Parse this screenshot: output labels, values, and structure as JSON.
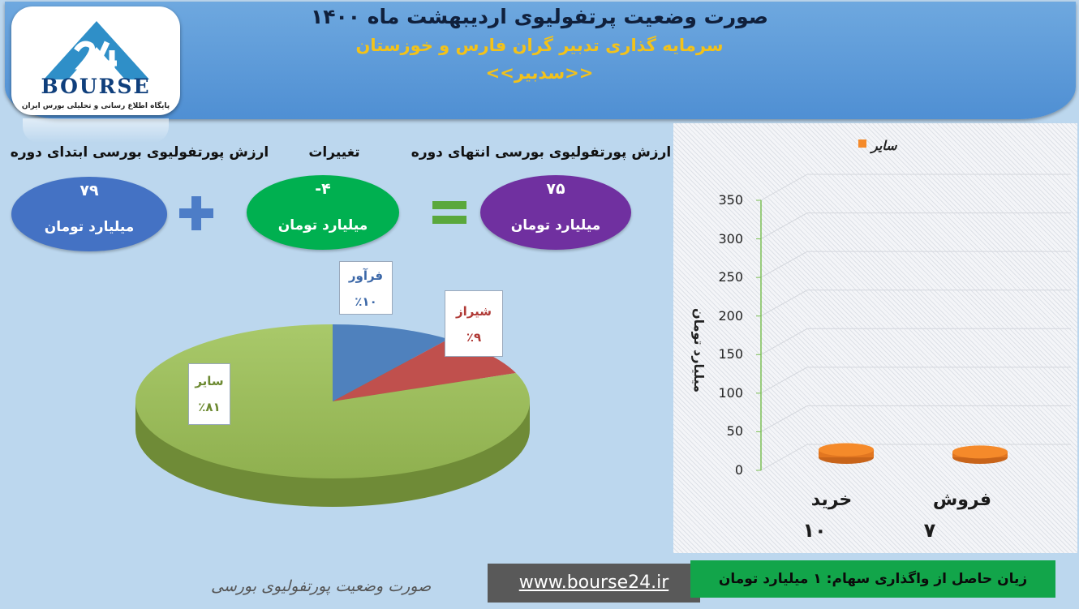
{
  "header": {
    "title": "صورت وضعیت پرتفولیوی اردیبهشت ماه ۱۴۰۰",
    "subtitle": "سرمایه گذاری تدبیر گران فارس و خوزستان",
    "ticker": "<<سدبیر>>"
  },
  "logo": {
    "word": "BOURSE",
    "tagline": "پایگاه اطلاع رسانی و تحلیلی بورس ایران"
  },
  "summary": {
    "start": {
      "label": "ارزش پورتفولیوی بورسی ابتدای دوره",
      "value": "۷۹",
      "unit": "میلیارد تومان"
    },
    "change": {
      "label": "تغییرات",
      "value": "-۴",
      "unit": "میلیارد تومان"
    },
    "end": {
      "label": "ارزش پورتفولیوی بورسی انتهای دوره",
      "value": "۷۵",
      "unit": "میلیارد تومان"
    }
  },
  "colors": {
    "header": "#5b9bd5",
    "start_oval": "#4472c4",
    "change_oval": "#00b050",
    "end_oval": "#7030a0",
    "pie_other": "#9bbb59",
    "pie_faravar": "#4f81bd",
    "pie_shiraz": "#c0504d",
    "bar": "#f58a2a",
    "loss_box": "#12a54a"
  },
  "chart_data": [
    {
      "type": "pie",
      "slices": [
        {
          "name": "فرآور",
          "percent_label": "٪۱۰",
          "value": 10
        },
        {
          "name": "شیراز",
          "percent_label": "٪۹",
          "value": 9
        },
        {
          "name": "سایر",
          "percent_label": "٪۸۱",
          "value": 81
        }
      ]
    },
    {
      "type": "bar",
      "categories": [
        "خرید",
        "فروش"
      ],
      "value_labels": [
        "۱۰",
        "۷"
      ],
      "series": [
        {
          "name": "سایر",
          "values": [
            10,
            7
          ]
        }
      ],
      "ylabel": "میلیارد تومان",
      "ylim": [
        0,
        350
      ],
      "yticks": [
        0,
        50,
        100,
        150,
        200,
        250,
        300,
        350
      ],
      "legend": "top-right",
      "grid": true
    }
  ],
  "footer": {
    "caption": "صورت وضعیت پورتفولیوی بورسی",
    "website": "www.bourse24.ir",
    "loss": "زیان حاصل از واگذاری سهام:  ۱  میلیارد تومان"
  }
}
